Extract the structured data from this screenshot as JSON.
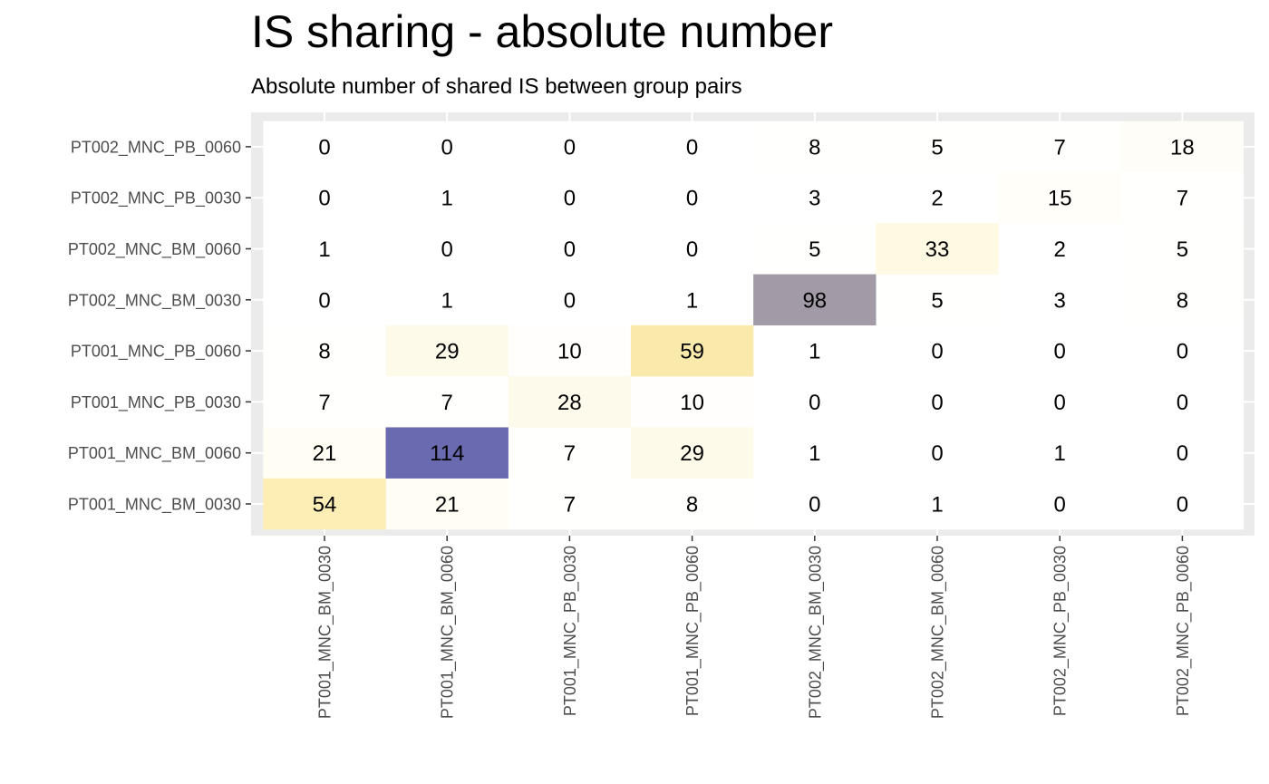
{
  "chart_data": {
    "type": "heatmap",
    "title": "IS sharing - absolute number",
    "subtitle": "Absolute number of shared IS between group pairs",
    "xlabel": "",
    "ylabel": "",
    "x_categories": [
      "PT001_MNC_BM_0030",
      "PT001_MNC_BM_0060",
      "PT001_MNC_PB_0030",
      "PT001_MNC_PB_0060",
      "PT002_MNC_BM_0030",
      "PT002_MNC_BM_0060",
      "PT002_MNC_PB_0030",
      "PT002_MNC_PB_0060"
    ],
    "y_categories": [
      "PT001_MNC_BM_0030",
      "PT001_MNC_BM_0060",
      "PT001_MNC_PB_0030",
      "PT001_MNC_PB_0060",
      "PT002_MNC_BM_0030",
      "PT002_MNC_BM_0060",
      "PT002_MNC_PB_0030",
      "PT002_MNC_PB_0060"
    ],
    "values": [
      [
        54,
        21,
        7,
        8,
        0,
        1,
        0,
        0
      ],
      [
        21,
        114,
        7,
        29,
        1,
        0,
        1,
        0
      ],
      [
        7,
        7,
        28,
        10,
        0,
        0,
        0,
        0
      ],
      [
        8,
        29,
        10,
        59,
        1,
        0,
        0,
        0
      ],
      [
        0,
        1,
        0,
        1,
        98,
        5,
        3,
        8
      ],
      [
        1,
        0,
        0,
        0,
        5,
        33,
        2,
        5
      ],
      [
        0,
        1,
        0,
        0,
        3,
        2,
        15,
        7
      ],
      [
        0,
        0,
        0,
        0,
        8,
        5,
        7,
        18
      ]
    ],
    "colors": {
      "panel_background": "#ebebeb",
      "grid": "#ffffff",
      "low": "#ffffff",
      "mid": "#f8d548",
      "high": "#5a5aa8"
    }
  }
}
